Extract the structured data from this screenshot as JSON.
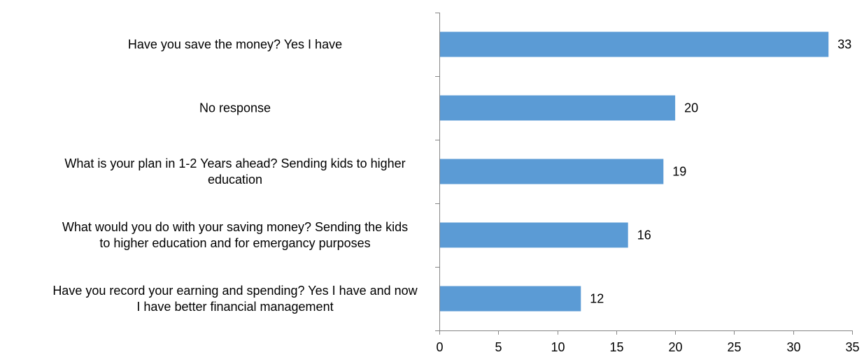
{
  "chart_data": {
    "type": "bar",
    "orientation": "horizontal",
    "categories": [
      [
        "Have you save the money? Yes I have"
      ],
      [
        "No response"
      ],
      [
        "What is your plan in 1-2 Years ahead? Sending kids to higher",
        "education"
      ],
      [
        "What would you do with your saving money? Sending the kids",
        "to higher education and for emergancy purposes"
      ],
      [
        "Have you record your earning and spending? Yes I have and now",
        "I have better financial management"
      ]
    ],
    "values": [
      33,
      20,
      19,
      16,
      12
    ],
    "value_labels": [
      "33",
      "20",
      "19",
      "16",
      "12"
    ],
    "xlim": [
      0,
      35
    ],
    "x_ticks": [
      0,
      5,
      10,
      15,
      20,
      25,
      30,
      35
    ],
    "x_tick_labels": [
      "0",
      "5",
      "10",
      "15",
      "20",
      "25",
      "30",
      "35"
    ],
    "title": "",
    "xlabel": "",
    "ylabel": "",
    "grid": false,
    "legend": "none",
    "colors": {
      "bar": "#5B9BD5",
      "axis": "#868686",
      "text": "#000000"
    }
  }
}
